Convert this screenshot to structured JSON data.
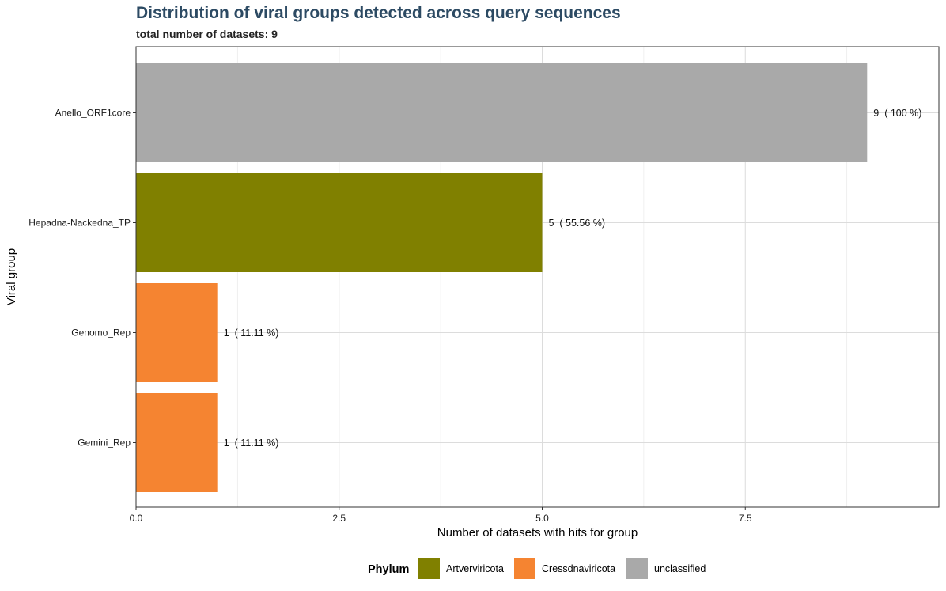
{
  "chart_data": {
    "type": "bar",
    "orientation": "horizontal",
    "title": "Distribution of viral groups detected across query sequences",
    "subtitle": "total number of datasets: 9",
    "xlabel": "Number of datasets with hits for group",
    "ylabel": "Viral group",
    "xlim": [
      0,
      9.45
    ],
    "xticks": [
      0,
      2.5,
      5,
      7.5
    ],
    "xtick_labels": [
      "0.0",
      "2.5",
      "5.0",
      "7.5"
    ],
    "grid": true,
    "legend": {
      "title": "Phylum",
      "position": "bottom",
      "entries": [
        {
          "name": "Artverviricota",
          "color": "#808000"
        },
        {
          "name": "Cressdnaviricota",
          "color": "#F58431"
        },
        {
          "name": "unclassified",
          "color": "#A9A9A9"
        }
      ]
    },
    "bars": [
      {
        "category": "Anello_ORF1core",
        "value": 9,
        "label": "9  ( 100 %)",
        "phylum": "unclassified",
        "color": "#A9A9A9"
      },
      {
        "category": "Hepadna-Nackedna_TP",
        "value": 5,
        "label": "5  ( 55.56 %)",
        "phylum": "Artverviricota",
        "color": "#808000"
      },
      {
        "category": "Genomo_Rep",
        "value": 1,
        "label": "1  ( 11.11 %)",
        "phylum": "Cressdnaviricota",
        "color": "#F58431"
      },
      {
        "category": "Gemini_Rep",
        "value": 1,
        "label": "1  ( 11.11 %)",
        "phylum": "Cressdnaviricota",
        "color": "#F58431"
      }
    ]
  }
}
